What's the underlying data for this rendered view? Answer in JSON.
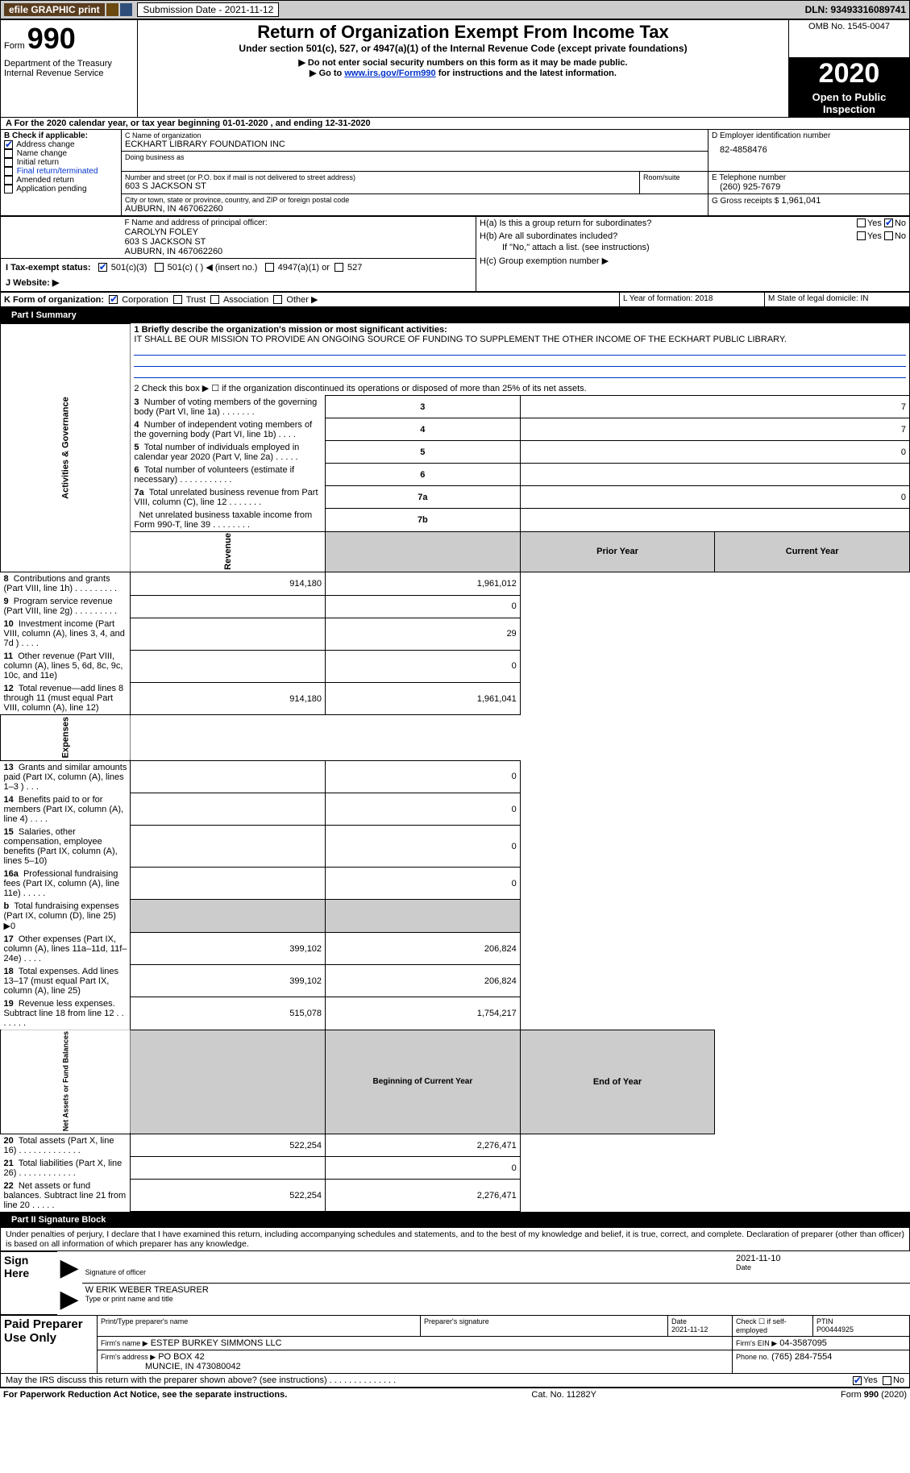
{
  "topbar": {
    "efile_badge": "efile GRAPHIC print",
    "submission_label": "Submission Date - 2021-11-12",
    "dln": "DLN: 93493316089741"
  },
  "header": {
    "form_word": "Form",
    "form_number": "990",
    "dept": "Department of the Treasury\nInternal Revenue Service",
    "title": "Return of Organization Exempt From Income Tax",
    "subtitle": "Under section 501(c), 527, or 4947(a)(1) of the Internal Revenue Code (except private foundations)",
    "note1": "▶ Do not enter social security numbers on this form as it may be made public.",
    "note2_prefix": "▶ Go to ",
    "note2_link": "www.irs.gov/Form990",
    "note2_suffix": " for instructions and the latest information.",
    "omb": "OMB No. 1545-0047",
    "year": "2020",
    "inspection": "Open to Public Inspection"
  },
  "period": {
    "line_a": "A For the 2020 calendar year, or tax year beginning 01-01-2020   , and ending 12-31-2020"
  },
  "box_b": {
    "title": "B Check if applicable:",
    "items": [
      {
        "label": "Address change",
        "checked": true
      },
      {
        "label": "Name change",
        "checked": false
      },
      {
        "label": "Initial return",
        "checked": false
      },
      {
        "label": "Final return/terminated",
        "checked": false
      },
      {
        "label": "Amended return",
        "checked": false
      },
      {
        "label": "Application pending",
        "checked": false
      }
    ]
  },
  "box_c": {
    "name_label": "C Name of organization",
    "name": "ECKHART LIBRARY FOUNDATION INC",
    "dba_label": "Doing business as",
    "street_label": "Number and street (or P.O. box if mail is not delivered to street address)",
    "room_label": "Room/suite",
    "street": "603 S JACKSON ST",
    "city_label": "City or town, state or province, country, and ZIP or foreign postal code",
    "city": "AUBURN, IN  467062260"
  },
  "box_d": {
    "label": "D Employer identification number",
    "value": "82-4858476"
  },
  "box_e": {
    "label": "E Telephone number",
    "value": "(260) 925-7679"
  },
  "box_g": {
    "label": "G Gross receipts $",
    "value": "1,961,041"
  },
  "box_f": {
    "label": "F Name and address of principal officer:",
    "name": "CAROLYN FOLEY",
    "addr1": "603 S JACKSON ST",
    "addr2": "AUBURN, IN  467062260"
  },
  "box_h": {
    "a_label": "H(a)  Is this a group return for subordinates?",
    "a_yes": "Yes",
    "a_no": "No",
    "b_label": "H(b)  Are all subordinates included?",
    "b_yes": "Yes",
    "b_no": "No",
    "b_note": "If \"No,\" attach a list. (see instructions)",
    "c_label": "H(c)  Group exemption number ▶"
  },
  "tax_status": {
    "label_i": "I  Tax-exempt status:",
    "opt_501c3": "501(c)(3)",
    "opt_501c": "501(c) (  ) ◀ (insert no.)",
    "opt_4947": "4947(a)(1) or",
    "opt_527": "527",
    "label_j": "J  Website: ▶"
  },
  "box_k": {
    "label": "K Form of organization:",
    "opts": [
      "Corporation",
      "Trust",
      "Association",
      "Other ▶"
    ],
    "checked_index": 0
  },
  "box_l": {
    "label": "L Year of formation: 2018"
  },
  "box_m": {
    "label": "M State of legal domicile: IN"
  },
  "part1": {
    "bar": "Part I    Summary",
    "q1_label": "1  Briefly describe the organization's mission or most significant activities:",
    "q1_text": "IT SHALL BE OUR MISSION TO PROVIDE AN ONGOING SOURCE OF FUNDING TO SUPPLEMENT THE OTHER INCOME OF THE ECKHART PUBLIC LIBRARY.",
    "q2": "2   Check this box ▶ ☐  if the organization discontinued its operations or disposed of more than 25% of its net assets.",
    "sideA": "Activities & Governance",
    "sideR": "Revenue",
    "sideE": "Expenses",
    "sideN": "Net Assets or Fund Balances",
    "gov_rows": [
      {
        "n": "3",
        "label": "Number of voting members of the governing body (Part VI, line 1a)  .   .   .   .   .   .   .",
        "box": "3",
        "val": "7"
      },
      {
        "n": "4",
        "label": "Number of independent voting members of the governing body (Part VI, line 1b)   .   .   .   .",
        "box": "4",
        "val": "7"
      },
      {
        "n": "5",
        "label": "Total number of individuals employed in calendar year 2020 (Part V, line 2a)   .   .   .   .   .",
        "box": "5",
        "val": "0"
      },
      {
        "n": "6",
        "label": "Total number of volunteers (estimate if necessary)   .   .   .   .   .   .   .   .   .   .   .",
        "box": "6",
        "val": ""
      },
      {
        "n": "7a",
        "label": "Total unrelated business revenue from Part VIII, column (C), line 12   .   .   .   .   .   .   .",
        "box": "7a",
        "val": "0"
      },
      {
        "n": "",
        "label": "Net unrelated business taxable income from Form 990-T, line 39   .   .   .   .   .   .   .   .",
        "box": "7b",
        "val": ""
      }
    ],
    "col_prior": "Prior Year",
    "col_current": "Current Year",
    "rev_rows": [
      {
        "n": "8",
        "label": "Contributions and grants (Part VIII, line 1h)   .   .   .   .   .   .   .   .   .",
        "p": "914,180",
        "c": "1,961,012"
      },
      {
        "n": "9",
        "label": "Program service revenue (Part VIII, line 2g)   .   .   .   .   .   .   .   .   .",
        "p": "",
        "c": "0"
      },
      {
        "n": "10",
        "label": "Investment income (Part VIII, column (A), lines 3, 4, and 7d )   .   .   .   .",
        "p": "",
        "c": "29"
      },
      {
        "n": "11",
        "label": "Other revenue (Part VIII, column (A), lines 5, 6d, 8c, 9c, 10c, and 11e)",
        "p": "",
        "c": "0"
      },
      {
        "n": "12",
        "label": "Total revenue—add lines 8 through 11 (must equal Part VIII, column (A), line 12)",
        "p": "914,180",
        "c": "1,961,041"
      }
    ],
    "exp_rows": [
      {
        "n": "13",
        "label": "Grants and similar amounts paid (Part IX, column (A), lines 1–3 )   .   .   .",
        "p": "",
        "c": "0"
      },
      {
        "n": "14",
        "label": "Benefits paid to or for members (Part IX, column (A), line 4)   .   .   .   .",
        "p": "",
        "c": "0"
      },
      {
        "n": "15",
        "label": "Salaries, other compensation, employee benefits (Part IX, column (A), lines 5–10)",
        "p": "",
        "c": "0"
      },
      {
        "n": "16a",
        "label": "Professional fundraising fees (Part IX, column (A), line 11e)   .   .   .   .   .",
        "p": "",
        "c": "0"
      },
      {
        "n": "b",
        "label": "Total fundraising expenses (Part IX, column (D), line 25) ▶0",
        "p": "__SHADE__",
        "c": "__SHADE__"
      },
      {
        "n": "17",
        "label": "Other expenses (Part IX, column (A), lines 11a–11d, 11f–24e)   .   .   .   .",
        "p": "399,102",
        "c": "206,824"
      },
      {
        "n": "18",
        "label": "Total expenses. Add lines 13–17 (must equal Part IX, column (A), line 25)",
        "p": "399,102",
        "c": "206,824"
      },
      {
        "n": "19",
        "label": "Revenue less expenses. Subtract line 18 from line 12   .   .   .   .   .   .   .",
        "p": "515,078",
        "c": "1,754,217"
      }
    ],
    "col_begin": "Beginning of Current Year",
    "col_end": "End of Year",
    "na_rows": [
      {
        "n": "20",
        "label": "Total assets (Part X, line 16)   .   .   .   .   .   .   .   .   .   .   .   .   .",
        "p": "522,254",
        "c": "2,276,471"
      },
      {
        "n": "21",
        "label": "Total liabilities (Part X, line 26)   .   .   .   .   .   .   .   .   .   .   .   .",
        "p": "",
        "c": "0"
      },
      {
        "n": "22",
        "label": "Net assets or fund balances. Subtract line 21 from line 20   .   .   .   .   .",
        "p": "522,254",
        "c": "2,276,471"
      }
    ]
  },
  "part2": {
    "bar": "Part II    Signature Block",
    "decl": "Under penalties of perjury, I declare that I have examined this return, including accompanying schedules and statements, and to the best of my knowledge and belief, it is true, correct, and complete. Declaration of preparer (other than officer) is based on all information of which preparer has any knowledge.",
    "sign_here": "Sign Here",
    "sig_officer": "Signature of officer",
    "sig_date": "2021-11-10",
    "date_label": "Date",
    "officer_name": "W ERIK WEBER  TREASURER",
    "officer_name_label": "Type or print name and title",
    "paid": "Paid Preparer Use Only",
    "pp_name_label": "Print/Type preparer's name",
    "pp_sig_label": "Preparer's signature",
    "pp_date_label": "Date",
    "pp_date": "2021-11-12",
    "pp_self": "Check ☐ if self-employed",
    "ptin_label": "PTIN",
    "ptin": "P00444925",
    "firm_name_label": "Firm's name    ▶",
    "firm_name": "ESTEP BURKEY SIMMONS LLC",
    "firm_ein_label": "Firm's EIN ▶",
    "firm_ein": "04-3587095",
    "firm_addr_label": "Firm's address ▶",
    "firm_addr1": "PO BOX 42",
    "firm_addr2": "MUNCIE, IN  473080042",
    "phone_label": "Phone no.",
    "phone": "(765) 284-7554",
    "discuss": "May the IRS discuss this return with the preparer shown above? (see instructions)   .   .   .   .   .   .   .   .   .   .   .   .   .   .",
    "discuss_yes": "Yes",
    "discuss_no": "No"
  },
  "footer": {
    "left": "For Paperwork Reduction Act Notice, see the separate instructions.",
    "mid": "Cat. No. 11282Y",
    "right": "Form 990 (2020)"
  },
  "colors": {
    "badge1": "#5a3d1f",
    "badge2": "#6a4a0f",
    "badge3": "#2f4f7a"
  }
}
